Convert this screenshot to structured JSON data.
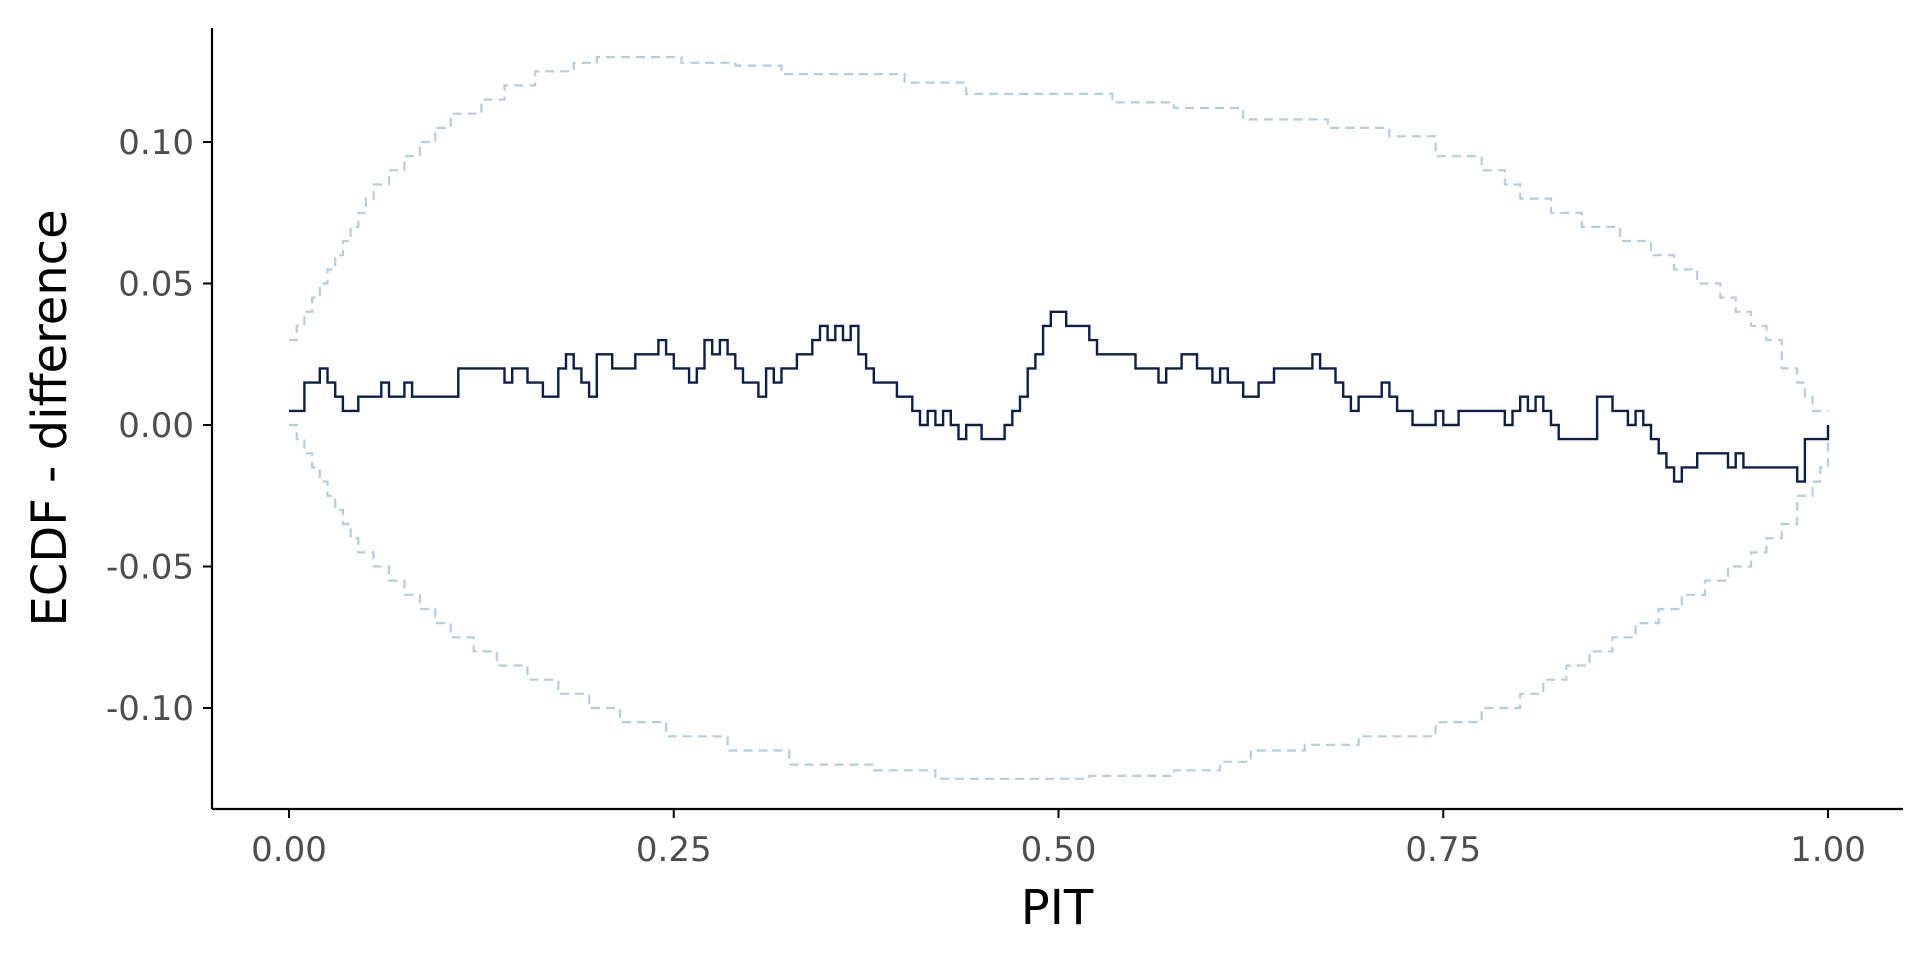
{
  "chart_data": {
    "type": "line",
    "title": "",
    "xlabel": "PIT",
    "ylabel": "ECDF - difference",
    "xlim": [
      -0.1,
      1.05
    ],
    "ylim": [
      -0.136,
      0.14
    ],
    "xticks": [
      0.0,
      0.25,
      0.5,
      0.75,
      1.0
    ],
    "xtick_labels": [
      "0.00",
      "0.25",
      "0.50",
      "0.75",
      "1.00"
    ],
    "yticks": [
      -0.1,
      -0.05,
      0.0,
      0.05,
      0.1
    ],
    "ytick_labels": [
      "-0.10",
      "-0.05",
      "0.00",
      "0.05",
      "0.10"
    ],
    "grid": false,
    "series": [
      {
        "role": "ecdf_difference",
        "style": "step",
        "color": "#0b1f4b",
        "x": [
          0.0,
          0.01,
          0.02,
          0.025,
          0.03,
          0.035,
          0.045,
          0.055,
          0.06,
          0.065,
          0.075,
          0.08,
          0.085,
          0.11,
          0.14,
          0.145,
          0.155,
          0.165,
          0.175,
          0.18,
          0.185,
          0.19,
          0.195,
          0.2,
          0.21,
          0.225,
          0.24,
          0.245,
          0.25,
          0.26,
          0.265,
          0.27,
          0.275,
          0.28,
          0.285,
          0.29,
          0.295,
          0.305,
          0.31,
          0.315,
          0.32,
          0.33,
          0.34,
          0.345,
          0.35,
          0.355,
          0.36,
          0.365,
          0.37,
          0.375,
          0.38,
          0.395,
          0.405,
          0.41,
          0.415,
          0.42,
          0.425,
          0.43,
          0.435,
          0.44,
          0.45,
          0.465,
          0.47,
          0.475,
          0.48,
          0.485,
          0.49,
          0.495,
          0.505,
          0.52,
          0.525,
          0.54,
          0.55,
          0.565,
          0.57,
          0.58,
          0.59,
          0.6,
          0.605,
          0.61,
          0.62,
          0.63,
          0.64,
          0.665,
          0.67,
          0.68,
          0.685,
          0.69,
          0.695,
          0.7,
          0.71,
          0.715,
          0.72,
          0.73,
          0.745,
          0.75,
          0.76,
          0.775,
          0.79,
          0.795,
          0.8,
          0.805,
          0.81,
          0.815,
          0.82,
          0.825,
          0.85,
          0.86,
          0.87,
          0.875,
          0.88,
          0.885,
          0.89,
          0.895,
          0.9,
          0.905,
          0.915,
          0.935,
          0.94,
          0.945,
          0.95,
          0.98,
          0.985,
          1.0
        ],
        "y": [
          0.005,
          0.015,
          0.02,
          0.015,
          0.01,
          0.005,
          0.01,
          0.01,
          0.015,
          0.01,
          0.015,
          0.01,
          0.01,
          0.02,
          0.015,
          0.02,
          0.015,
          0.01,
          0.02,
          0.025,
          0.02,
          0.015,
          0.01,
          0.025,
          0.02,
          0.025,
          0.03,
          0.025,
          0.02,
          0.015,
          0.02,
          0.03,
          0.025,
          0.03,
          0.025,
          0.02,
          0.015,
          0.01,
          0.02,
          0.015,
          0.02,
          0.025,
          0.03,
          0.035,
          0.03,
          0.035,
          0.03,
          0.035,
          0.025,
          0.02,
          0.015,
          0.01,
          0.005,
          0.0,
          0.005,
          0.0,
          0.005,
          0.0,
          -0.005,
          0.0,
          -0.005,
          0.0,
          0.005,
          0.01,
          0.02,
          0.025,
          0.035,
          0.04,
          0.035,
          0.03,
          0.025,
          0.025,
          0.02,
          0.015,
          0.02,
          0.025,
          0.02,
          0.015,
          0.02,
          0.015,
          0.01,
          0.015,
          0.02,
          0.025,
          0.02,
          0.015,
          0.01,
          0.005,
          0.01,
          0.01,
          0.015,
          0.01,
          0.005,
          0.0,
          0.005,
          0.0,
          0.005,
          0.005,
          0.0,
          0.005,
          0.01,
          0.005,
          0.01,
          0.005,
          0.0,
          -0.005,
          0.01,
          0.005,
          0.0,
          0.005,
          0.0,
          -0.005,
          -0.01,
          -0.015,
          -0.02,
          -0.015,
          -0.01,
          -0.015,
          -0.01,
          -0.015,
          -0.015,
          -0.02,
          -0.005,
          0.0
        ]
      },
      {
        "role": "upper_band",
        "style": "dashed-step",
        "color": "#b3cde3",
        "x": [
          0.0,
          0.005,
          0.01,
          0.015,
          0.02,
          0.025,
          0.03,
          0.035,
          0.04,
          0.045,
          0.05,
          0.055,
          0.065,
          0.075,
          0.085,
          0.095,
          0.105,
          0.125,
          0.14,
          0.16,
          0.185,
          0.2,
          0.22,
          0.255,
          0.29,
          0.32,
          0.4,
          0.44,
          0.535,
          0.575,
          0.62,
          0.675,
          0.715,
          0.745,
          0.775,
          0.79,
          0.8,
          0.82,
          0.84,
          0.865,
          0.885,
          0.9,
          0.915,
          0.93,
          0.94,
          0.95,
          0.96,
          0.97,
          0.98,
          0.985,
          0.99,
          0.995,
          1.0
        ],
        "y": [
          0.03,
          0.035,
          0.04,
          0.045,
          0.05,
          0.055,
          0.06,
          0.065,
          0.07,
          0.075,
          0.08,
          0.085,
          0.09,
          0.095,
          0.1,
          0.105,
          0.11,
          0.115,
          0.12,
          0.125,
          0.128,
          0.13,
          0.13,
          0.128,
          0.127,
          0.124,
          0.121,
          0.117,
          0.114,
          0.112,
          0.108,
          0.105,
          0.102,
          0.095,
          0.09,
          0.085,
          0.08,
          0.075,
          0.07,
          0.065,
          0.06,
          0.055,
          0.05,
          0.045,
          0.04,
          0.035,
          0.03,
          0.02,
          0.015,
          0.01,
          0.005,
          0.005,
          0.005
        ]
      },
      {
        "role": "lower_band",
        "style": "dashed-step",
        "color": "#b3cde3",
        "x": [
          0.0,
          0.005,
          0.01,
          0.015,
          0.02,
          0.025,
          0.03,
          0.035,
          0.04,
          0.045,
          0.055,
          0.065,
          0.075,
          0.085,
          0.095,
          0.105,
          0.12,
          0.135,
          0.155,
          0.175,
          0.195,
          0.215,
          0.245,
          0.285,
          0.325,
          0.38,
          0.42,
          0.47,
          0.52,
          0.575,
          0.605,
          0.625,
          0.66,
          0.695,
          0.745,
          0.775,
          0.8,
          0.815,
          0.83,
          0.845,
          0.86,
          0.875,
          0.89,
          0.905,
          0.92,
          0.935,
          0.95,
          0.96,
          0.97,
          0.98,
          0.99,
          0.995,
          1.0
        ],
        "y": [
          0.0,
          -0.005,
          -0.01,
          -0.015,
          -0.02,
          -0.025,
          -0.03,
          -0.035,
          -0.04,
          -0.045,
          -0.05,
          -0.055,
          -0.06,
          -0.065,
          -0.07,
          -0.075,
          -0.08,
          -0.085,
          -0.09,
          -0.095,
          -0.1,
          -0.105,
          -0.11,
          -0.115,
          -0.12,
          -0.122,
          -0.125,
          -0.125,
          -0.124,
          -0.122,
          -0.119,
          -0.115,
          -0.113,
          -0.11,
          -0.105,
          -0.1,
          -0.095,
          -0.09,
          -0.085,
          -0.08,
          -0.075,
          -0.07,
          -0.065,
          -0.06,
          -0.055,
          -0.05,
          -0.045,
          -0.04,
          -0.035,
          -0.025,
          -0.02,
          -0.015,
          -0.005
        ]
      }
    ]
  }
}
